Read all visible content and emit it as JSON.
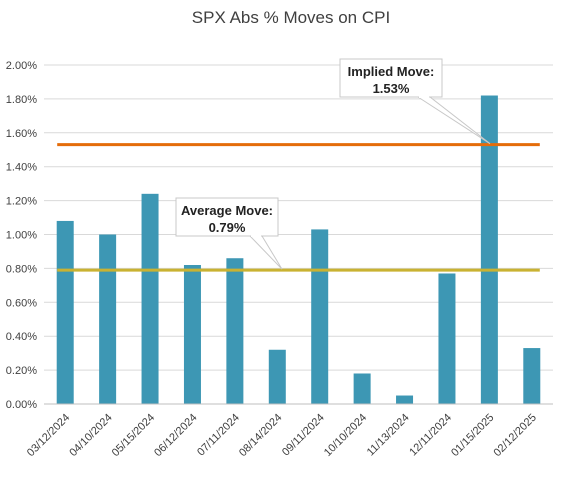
{
  "chart_data": {
    "type": "bar",
    "title": "SPX Abs % Moves on CPI",
    "categories": [
      "03/12/2024",
      "04/10/2024",
      "05/15/2024",
      "06/12/2024",
      "07/11/2024",
      "08/14/2024",
      "09/11/2024",
      "10/10/2024",
      "11/13/2024",
      "12/11/2024",
      "01/15/2025",
      "02/12/2025"
    ],
    "values": [
      1.08,
      1.0,
      1.24,
      0.82,
      0.86,
      0.32,
      1.03,
      0.18,
      0.05,
      0.77,
      1.82,
      0.33
    ],
    "ylim": [
      0,
      2.0
    ],
    "yticks": [
      "0.00%",
      "0.20%",
      "0.40%",
      "0.60%",
      "0.80%",
      "1.00%",
      "1.20%",
      "1.40%",
      "1.60%",
      "1.80%",
      "2.00%"
    ],
    "grid": true,
    "bar_color": "#3d97b4",
    "reference_lines": [
      {
        "value": 1.53,
        "color": "#e46c0a",
        "label_line1": "Implied Move:",
        "label_line2": "1.53%"
      },
      {
        "value": 0.79,
        "color": "#c9b232",
        "label_line1": "Average Move:",
        "label_line2": "0.79%"
      }
    ]
  }
}
